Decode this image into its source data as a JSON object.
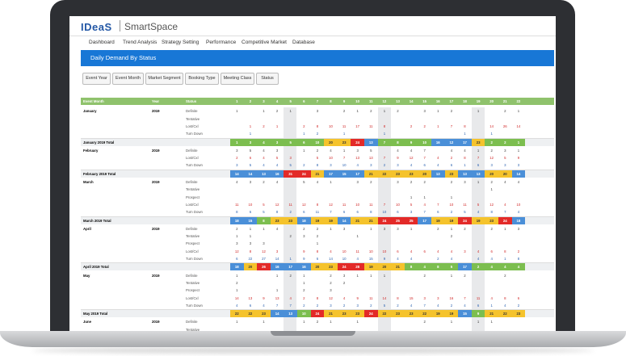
{
  "app": {
    "logo": "IDeaS",
    "name": "SmartSpace"
  },
  "nav": [
    "Dashboard",
    "Trend Analysis",
    "Strategy Setting",
    "Performance",
    "Competitive Market",
    "Database"
  ],
  "page_title": "Daily Demand By Status",
  "filters": [
    "Event Year",
    "Event Month",
    "Market Segment",
    "Booking Type",
    "Meeting Class",
    "Status"
  ],
  "table": {
    "col_event_month": "Event Month",
    "col_year": "Year",
    "col_status": "Status",
    "days": [
      "1",
      "2",
      "3",
      "4",
      "5",
      "6",
      "7",
      "8",
      "9",
      "10",
      "11",
      "12",
      "13",
      "14",
      "15",
      "16",
      "17",
      "18",
      "19",
      "20",
      "21",
      "22"
    ],
    "groups": [
      {
        "month": "January",
        "year": "2019",
        "rows": [
          {
            "status": "Definite",
            "vals": [
              "1",
              "",
              "1",
              "2",
              "1",
              "",
              "3",
              "",
              "2",
              "1",
              "2",
              "1",
              "2",
              "",
              "3",
              "1",
              "2",
              "",
              "1",
              "",
              "2",
              "1"
            ]
          },
          {
            "status": "Tentative",
            "vals": [
              "",
              "",
              "",
              "",
              "",
              "",
              "",
              "",
              "",
              "",
              "",
              "",
              "",
              "",
              "",
              "",
              "",
              "",
              "",
              "",
              "",
              ""
            ]
          },
          {
            "status": "Lost/Cxl",
            "vals": [
              "",
              "1",
              "2",
              "1",
              "",
              "2",
              "8",
              "10",
              "11",
              "17",
              "11",
              "8",
              "",
              "2",
              "2",
              "1",
              "7",
              "8",
              "",
              "14",
              "26",
              "14"
            ]
          },
          {
            "status": "Turn Down",
            "vals": [
              "",
              "1",
              "",
              "",
              "",
              "1",
              "2",
              "",
              "1",
              "",
              "",
              "1",
              "",
              "",
              "",
              "",
              "",
              "1",
              "",
              "1",
              "",
              ""
            ]
          }
        ],
        "total_label": "January 2019 Total",
        "totals": [
          "1",
          "3",
          "4",
          "3",
          "5",
          "6",
          "10",
          "20",
          "23",
          "24",
          "13",
          "7",
          "8",
          "9",
          "10",
          "16",
          "12",
          "17",
          "23",
          "2",
          "2",
          "1"
        ]
      },
      {
        "month": "February",
        "year": "2019",
        "rows": [
          {
            "status": "Definite",
            "vals": [
              "3",
              "5",
              "4",
              "3",
              "",
              "1",
              "2",
              "4",
              "1",
              "3",
              "5",
              "",
              "4",
              "4",
              "7",
              "",
              "4",
              "4",
              "1",
              "2",
              "3",
              "1"
            ]
          },
          {
            "status": "Lost/Cxl",
            "vals": [
              "2",
              "6",
              "4",
              "5",
              "3",
              "",
              "5",
              "10",
              "7",
              "13",
              "13",
              "7",
              "9",
              "12",
              "7",
              "4",
              "2",
              "8",
              "7",
              "12",
              "5",
              "9"
            ]
          },
          {
            "status": "Turn Down",
            "vals": [
              "3",
              "5",
              "4",
              "4",
              "5",
              "2",
              "8",
              "3",
              "10",
              "4",
              "3",
              "2",
              "3",
              "4",
              "6",
              "4",
              "6",
              "1",
              "6",
              "3",
              "3",
              "3"
            ]
          }
        ],
        "total_label": "February 2019 Total",
        "totals": [
          "14",
          "14",
          "13",
          "16",
          "31",
          "24",
          "21",
          "17",
          "15",
          "17",
          "21",
          "22",
          "23",
          "23",
          "20",
          "13",
          "23",
          "13",
          "13",
          "20",
          "20",
          "14"
        ]
      },
      {
        "month": "March",
        "year": "2019",
        "rows": [
          {
            "status": "Definite",
            "vals": [
              "4",
              "3",
              "2",
              "4",
              "",
              "5",
              "4",
              "1",
              "",
              "3",
              "2",
              "",
              "3",
              "2",
              "2",
              "",
              "2",
              "3",
              "1",
              "2",
              "4",
              "4"
            ]
          },
          {
            "status": "Tentative",
            "vals": [
              "",
              "",
              "",
              "",
              "",
              "",
              "",
              "",
              "",
              "",
              "",
              "",
              "",
              "",
              "",
              "",
              "",
              "",
              "",
              "1",
              "",
              ""
            ]
          },
          {
            "status": "Prospect",
            "vals": [
              "",
              "",
              "",
              "",
              "",
              "",
              "",
              "",
              "",
              "",
              "",
              "",
              "",
              "1",
              "1",
              "",
              "1",
              "",
              "",
              "",
              "",
              ""
            ]
          },
          {
            "status": "Lost/Cxl",
            "vals": [
              "11",
              "10",
              "5",
              "12",
              "11",
              "12",
              "8",
              "12",
              "11",
              "10",
              "11",
              "7",
              "10",
              "5",
              "4",
              "7",
              "10",
              "11",
              "5",
              "12",
              "4",
              "10"
            ]
          },
          {
            "status": "Turn Down",
            "vals": [
              "8",
              "6",
              "5",
              "8",
              "2",
              "6",
              "11",
              "7",
              "6",
              "6",
              "8",
              "10",
              "6",
              "3",
              "7",
              "6",
              "2",
              "5",
              "4",
              "8",
              "7",
              "4"
            ]
          }
        ],
        "total_label": "March 2019 Total",
        "totals": [
          "18",
          "15",
          "8",
          "23",
          "23",
          "18",
          "19",
          "19",
          "14",
          "21",
          "21",
          "24",
          "25",
          "25",
          "17",
          "19",
          "19",
          "24",
          "19",
          "23",
          "24",
          "18"
        ]
      },
      {
        "month": "April",
        "year": "2019",
        "rows": [
          {
            "status": "Definite",
            "vals": [
              "2",
              "1",
              "1",
              "4",
              "",
              "2",
              "2",
              "1",
              "3",
              "",
              "1",
              "3",
              "3",
              "1",
              "",
              "2",
              "1",
              "2",
              "",
              "2",
              "1",
              "3"
            ]
          },
          {
            "status": "Tentative",
            "vals": [
              "1",
              "1",
              "",
              "",
              "2",
              "3",
              "2",
              "",
              "",
              "1",
              "",
              "",
              "",
              "",
              "",
              "",
              "2",
              "",
              "",
              "",
              "",
              ""
            ]
          },
          {
            "status": "Prospect",
            "vals": [
              "3",
              "3",
              "3",
              "",
              "",
              "",
              "1",
              "",
              "",
              "",
              "",
              "",
              "",
              "",
              "",
              "",
              "",
              "",
              "",
              "",
              "",
              ""
            ]
          },
          {
            "status": "Lost/Cxl",
            "vals": [
              "12",
              "8",
              "12",
              "3",
              "",
              "9",
              "8",
              "4",
              "10",
              "11",
              "10",
              "10",
              "6",
              "4",
              "6",
              "4",
              "4",
              "3",
              "4",
              "6",
              "8",
              "2"
            ]
          },
          {
            "status": "Turn Down",
            "vals": [
              "6",
              "22",
              "27",
              "14",
              "1",
              "9",
              "6",
              "14",
              "10",
              "4",
              "15",
              "9",
              "4",
              "4",
              "",
              "2",
              "4",
              "",
              "4",
              "4",
              "1",
              "8"
            ]
          }
        ],
        "total_label": "April 2019 Total",
        "totals": [
          "18",
          "20",
          "26",
          "16",
          "17",
          "16",
          "20",
          "23",
          "24",
          "28",
          "19",
          "20",
          "21",
          "8",
          "4",
          "8",
          "5",
          "17",
          "2",
          "4",
          "4",
          "4"
        ]
      },
      {
        "month": "May",
        "year": "2019",
        "rows": [
          {
            "status": "Definite",
            "vals": [
              "1",
              "",
              "",
              "1",
              "2",
              "1",
              "",
              "2",
              "3",
              "1",
              "1",
              "1",
              "",
              "",
              "2",
              "",
              "1",
              "2",
              "",
              "",
              "2",
              ""
            ]
          },
          {
            "status": "Tentative",
            "vals": [
              "2",
              "",
              "",
              "",
              "",
              "1",
              "",
              "2",
              "2",
              "",
              "",
              "",
              "",
              "",
              "",
              "",
              "",
              "",
              "",
              "",
              "",
              ""
            ]
          },
          {
            "status": "Prospect",
            "vals": [
              "1",
              "",
              "",
              "1",
              "",
              "2",
              "",
              "3",
              "",
              "",
              "",
              "",
              "",
              "",
              "",
              "",
              "",
              "",
              "",
              "",
              "",
              ""
            ]
          },
          {
            "status": "Lost/Cxl",
            "vals": [
              "14",
              "13",
              "9",
              "13",
              "4",
              "2",
              "8",
              "12",
              "4",
              "9",
              "11",
              "14",
              "8",
              "15",
              "3",
              "3",
              "16",
              "7",
              "11",
              "4",
              "8",
              "6"
            ]
          },
          {
            "status": "Turn Down",
            "vals": [
              "4",
              "6",
              "4",
              "7",
              "7",
              "2",
              "2",
              "3",
              "2",
              "3",
              "2",
              "5",
              "2",
              "4",
              "7",
              "4",
              "2",
              "4",
              "6",
              "1",
              "4",
              "2"
            ]
          }
        ],
        "total_label": "May 2019 Total",
        "totals": [
          "22",
          "22",
          "23",
          "14",
          "13",
          "10",
          "24",
          "21",
          "23",
          "23",
          "24",
          "22",
          "23",
          "23",
          "22",
          "19",
          "19",
          "15",
          "9",
          "21",
          "22",
          "23"
        ]
      },
      {
        "month": "June",
        "year": "2019",
        "rows": [
          {
            "status": "Definite",
            "vals": [
              "1",
              "",
              "1",
              "",
              "",
              "1",
              "2",
              "1",
              "",
              "1",
              "",
              "",
              "",
              "",
              "2",
              "",
              "1",
              "",
              "1",
              "1",
              "",
              ""
            ]
          },
          {
            "status": "Tentative",
            "vals": [
              "",
              "",
              "",
              "",
              "",
              "",
              "",
              "",
              "",
              "",
              "",
              "",
              "",
              "",
              "",
              "",
              "",
              "",
              "",
              "",
              "",
              ""
            ]
          }
        ],
        "total_label": "",
        "totals": []
      }
    ]
  },
  "colors": {
    "header_green": "#8fc26c",
    "banner_blue": "#1877d6",
    "green": "#7cbe4f",
    "yellow": "#f5c32c",
    "red": "#e32a28",
    "blue": "#4a8fd8"
  }
}
